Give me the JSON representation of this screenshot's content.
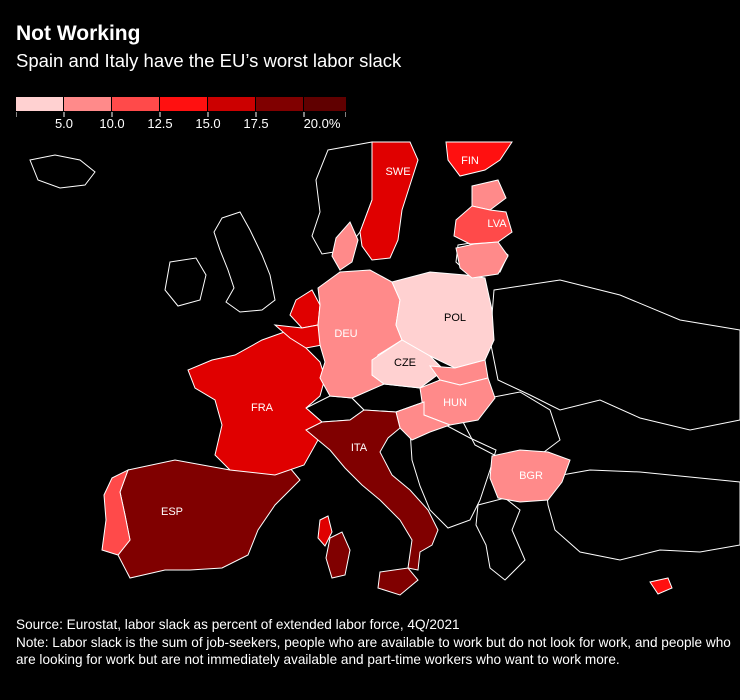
{
  "title": "Not Working",
  "subtitle": "Spain and Italy have the EU’s worst labor slack",
  "legend": {
    "ticks": [
      "5.0",
      "10.0",
      "12.5",
      "15.0",
      "17.5",
      "20.0%"
    ],
    "colors": [
      "#ffd1d1",
      "#ff8a8a",
      "#ff4a4a",
      "#ff1010",
      "#cc0000",
      "#800000",
      "#600000"
    ]
  },
  "countries": [
    {
      "code": "SWE",
      "color": "#e00000"
    },
    {
      "code": "FIN",
      "color": "#ff1010"
    },
    {
      "code": "LVA",
      "color": "#ff4a4a"
    },
    {
      "code": "DEU",
      "color": "#ff8a8a"
    },
    {
      "code": "POL",
      "color": "#ffd1d1"
    },
    {
      "code": "CZE",
      "color": "#ffd1d1"
    },
    {
      "code": "FRA",
      "color": "#e00000"
    },
    {
      "code": "HUN",
      "color": "#ff8a8a"
    },
    {
      "code": "ITA",
      "color": "#800000"
    },
    {
      "code": "BGR",
      "color": "#ff8a8a"
    },
    {
      "code": "ESP",
      "color": "#800000"
    }
  ],
  "footer": {
    "source": "Source: Eurostat, labor slack as percent of extended labor force, 4Q/2021",
    "note": "Note: Labor slack is the sum of job-seekers, people who are available to work but do not look for work, and people who are looking for work but are not immediately available and part-time workers who want to work more."
  }
}
